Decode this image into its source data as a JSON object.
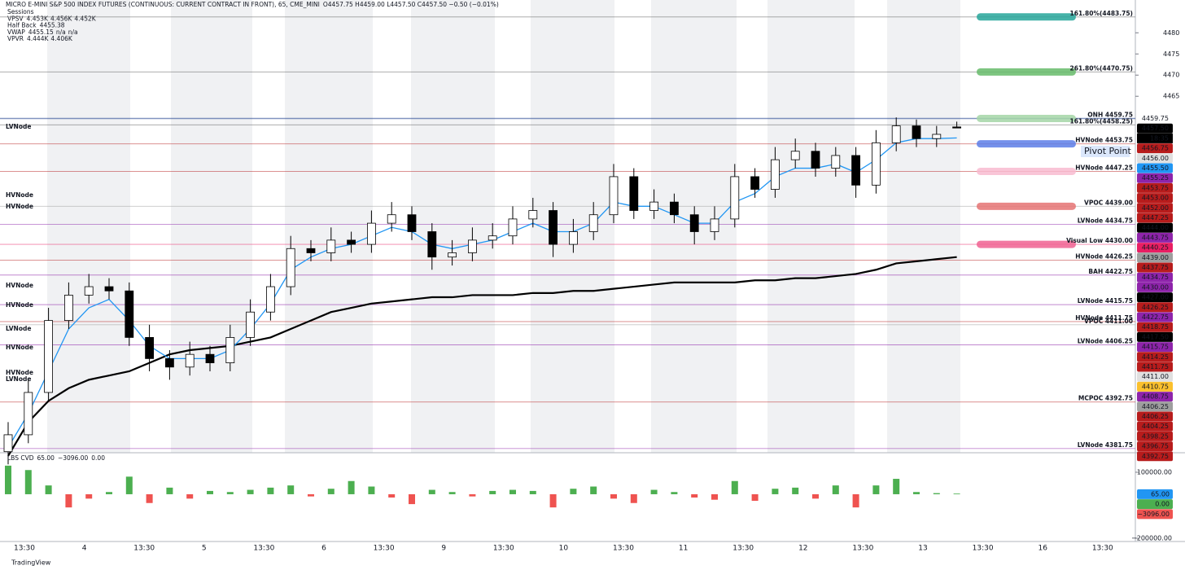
{
  "header": {
    "title": "MICRO E-MINI S&P 500 INDEX FUTURES (CONTINUOUS: CURRENT CONTRACT IN FRONT), 65, CME_MINI",
    "ohlc": "O4457.75 H4459.00 L4457.50 C4457.50 −0.50 (−0.01%)",
    "indicators": [
      {
        "name": "Sessions",
        "values": []
      },
      {
        "name": "VPSV",
        "values": [
          "4.453K",
          "4.456K",
          "4.452K"
        ],
        "color": "#e57373"
      },
      {
        "name": "Half Back",
        "values": [
          "4455.38"
        ],
        "color": "#2962ff"
      },
      {
        "name": "VWAP",
        "values": [
          "4455.15",
          "n/a",
          "n/a"
        ],
        "color": "#2196f3"
      },
      {
        "name": "VPVR",
        "values": [
          "4.444K",
          "4.406K"
        ],
        "color": "#787b86"
      }
    ]
  },
  "chart_data": [
    {
      "type": "candlestick",
      "ylim": [
        4380.75,
        4487.75
      ],
      "yticks": [
        4465,
        4470,
        4475,
        4480
      ],
      "x_labels": [
        "13:30",
        "4",
        "13:30",
        "5",
        "13:30",
        "6",
        "13:30",
        "9",
        "13:30",
        "10",
        "13:30",
        "11",
        "13:30",
        "12",
        "13:30",
        "13",
        "13:30",
        "16",
        "13:30"
      ],
      "up_color": "#ffffff",
      "down_color": "#000000",
      "open": [
        4381,
        4385,
        4395,
        4412,
        4418,
        4420,
        4419,
        4408,
        4403,
        4401,
        4404,
        4402,
        4408,
        4414,
        4420,
        4429,
        4428,
        4431,
        4430,
        4435,
        4437,
        4433,
        4427,
        4428,
        4431,
        4432,
        4436,
        4438,
        4430,
        4433,
        4437,
        4446,
        4438,
        4440,
        4437,
        4433,
        4436,
        4446,
        4443,
        4450,
        4452,
        4448,
        4451,
        4444,
        4454,
        4458,
        4455,
        4457.75
      ],
      "high": [
        4388,
        4398,
        4415,
        4421,
        4423,
        4422,
        4421,
        4411,
        4405,
        4407,
        4406,
        4411,
        4417,
        4423,
        4432,
        4431,
        4434,
        4433,
        4438,
        4440,
        4439,
        4435,
        4431,
        4434,
        4435,
        4439,
        4441,
        4440,
        4436,
        4440,
        4449,
        4448,
        4443,
        4442,
        4439,
        4439,
        4449,
        4448,
        4453,
        4455,
        4454,
        4453,
        4453,
        4457,
        4460,
        4459.5,
        4458,
        4459
      ],
      "low": [
        4378,
        4383,
        4393,
        4410,
        4416,
        4417,
        4406,
        4400,
        4398,
        4399,
        4400,
        4400,
        4406,
        4412,
        4418,
        4426,
        4426,
        4428,
        4428,
        4433,
        4431,
        4424,
        4425,
        4426,
        4429,
        4430,
        4434,
        4427,
        4428,
        4431,
        4435,
        4436,
        4436,
        4435,
        4430,
        4431,
        4434,
        4441,
        4441,
        4448,
        4446,
        4446,
        4441,
        4442,
        4452,
        4453,
        4453,
        4457.5
      ],
      "close": [
        4385,
        4395,
        4412,
        4418,
        4420,
        4419,
        4408,
        4403,
        4401,
        4404,
        4402,
        4408,
        4414,
        4420,
        4429,
        4428,
        4431,
        4430,
        4435,
        4437,
        4433,
        4427,
        4428,
        4431,
        4432,
        4436,
        4438,
        4430,
        4433,
        4437,
        4446,
        4438,
        4440,
        4437,
        4433,
        4436,
        4446,
        4443,
        4450,
        4452,
        4448,
        4451,
        4444,
        4454,
        4458,
        4455,
        4456,
        4457.5
      ],
      "lines": [
        {
          "color": "#000000",
          "values": [
            4380,
            4388,
            4393,
            4396,
            4398,
            4399,
            4400,
            4402,
            4404,
            4405,
            4405.5,
            4406,
            4407,
            4408,
            4410,
            4412,
            4414,
            4415,
            4416,
            4416.5,
            4417,
            4417.5,
            4417.5,
            4418,
            4418,
            4418,
            4418.5,
            4418.5,
            4419,
            4419,
            4419.5,
            4420,
            4420.5,
            4421,
            4421,
            4421,
            4421,
            4421.5,
            4421.5,
            4422,
            4422,
            4422.5,
            4423,
            4424,
            4425.5,
            4426,
            4426.5,
            4427
          ]
        },
        {
          "color": "#2196f3",
          "values": [
            4382,
            4390,
            4400,
            4410,
            4415,
            4417,
            4412,
            4406,
            4403,
            4403,
            4403,
            4405,
            4410,
            4416,
            4424,
            4427,
            4429,
            4430,
            4432,
            4434,
            4433,
            4430,
            4429,
            4430,
            4431,
            4433,
            4435,
            4433,
            4433,
            4435,
            4440,
            4439,
            4439,
            4437,
            4435,
            4435,
            4440,
            4442,
            4446,
            4448,
            4448,
            4449,
            4447,
            4450,
            4454,
            4455,
            4455,
            4455.15
          ]
        }
      ],
      "levels": [
        {
          "label": "161.80%(4483.75)",
          "value": 4483.75,
          "color": "#555555",
          "zone": "#26a69a"
        },
        {
          "label": "261.80%(4470.75)",
          "value": 4470.75,
          "color": "#555555",
          "zone": "#66bb6a"
        },
        {
          "label": "ONH 4459.75",
          "value": 4459.75,
          "color": "#1a3a8c",
          "zone": "#a5d6a7"
        },
        {
          "label": "161.80%(4458.25)",
          "value": 4458.25,
          "color": "#555555"
        },
        {
          "label": "HVNode 4453.75",
          "value": 4453.75,
          "color": "#b71c1c",
          "zone": "#5c7ee8"
        },
        {
          "label": "HVNode 4447.25",
          "value": 4447.25,
          "color": "#b71c1c",
          "zone": "#f8bbd0"
        },
        {
          "label": "VPOC 4439.00",
          "value": 4439,
          "color": "#999999",
          "zone": "#e57373"
        },
        {
          "label": "LVNode 4434.75",
          "value": 4434.75,
          "color": "#8e24aa"
        },
        {
          "label": "Visual Low 4430.00",
          "value": 4430,
          "color": "#e91e63",
          "zone": "#f06292"
        },
        {
          "label": "HVNode 4426.25",
          "value": 4426.25,
          "color": "#b71c1c"
        },
        {
          "label": "BAH 4422.75",
          "value": 4422.75,
          "color": "#8e24aa"
        },
        {
          "label": "LVNode 4415.75",
          "value": 4415.75,
          "color": "#8e24aa"
        },
        {
          "label": "HVNode 4411.75",
          "value": 4411.75,
          "color": "#b71c1c"
        },
        {
          "label": "VPOC 4411.00",
          "value": 4411,
          "color": "#999999"
        },
        {
          "label": "LVNode 4406.25",
          "value": 4406.25,
          "color": "#8e24aa"
        },
        {
          "label": "MCPOC 4392.75",
          "value": 4392.75,
          "color": "#b71c1c"
        },
        {
          "label": "LVNode 4381.75",
          "value": 4381.75,
          "color": "#8e24aa"
        }
      ],
      "price_labels": [
        {
          "value": 4459.75,
          "label": "4459.75",
          "color": "#ffffff",
          "text_color": "#1a3a8c"
        },
        {
          "value": 4457.5,
          "label": "4457.50",
          "color": "#000000",
          "text_color": "#ffffff"
        },
        {
          "value": 4456.75,
          "label": "4456.75",
          "color": "#b71c1c",
          "text_color": "#ffffff"
        },
        {
          "value": 4456,
          "label": "4456.00",
          "color": "#e0e0e0",
          "text_color": "#000000"
        },
        {
          "value": 4455.5,
          "label": "4455.50",
          "color": "#2196f3",
          "text_color": "#ffffff"
        },
        {
          "value": 4455.25,
          "label": "4455.25",
          "color": "#8e24aa",
          "text_color": "#ffffff"
        },
        {
          "value": 4453.75,
          "label": "4453.75",
          "color": "#b71c1c",
          "text_color": "#ffffff"
        },
        {
          "value": 4453,
          "label": "4453.00",
          "color": "#b71c1c",
          "text_color": "#ffffff"
        },
        {
          "value": 4452,
          "label": "4452.00",
          "color": "#b71c1c",
          "text_color": "#ffffff"
        },
        {
          "value": 4447.25,
          "label": "4447.25",
          "color": "#b71c1c",
          "text_color": "#ffffff"
        },
        {
          "value": 4444,
          "label": "4444.00",
          "color": "#000000",
          "text_color": "#ffffff"
        },
        {
          "value": 4443.75,
          "label": "4443.75",
          "color": "#8e24aa",
          "text_color": "#ffffff"
        },
        {
          "value": 4440.25,
          "label": "4440.25",
          "color": "#e91e63",
          "text_color": "#ffffff"
        },
        {
          "value": 4439,
          "label": "4439.00",
          "color": "#9e9e9e",
          "text_color": "#ffffff"
        },
        {
          "value": 4437.75,
          "label": "4437.75",
          "color": "#b71c1c",
          "text_color": "#ffffff"
        },
        {
          "value": 4434.75,
          "label": "4434.75",
          "color": "#8e24aa",
          "text_color": "#ffffff"
        },
        {
          "value": 4430,
          "label": "4430.00",
          "color": "#8e24aa",
          "text_color": "#ffffff"
        },
        {
          "value": 4427,
          "label": "4427.00",
          "color": "#000000",
          "text_color": "#ffffff"
        },
        {
          "value": 4426.25,
          "label": "4426.25",
          "color": "#b71c1c",
          "text_color": "#ffffff"
        },
        {
          "value": 4422.75,
          "label": "4422.75",
          "color": "#8e24aa",
          "text_color": "#ffffff"
        },
        {
          "value": 4418.75,
          "label": "4418.75",
          "color": "#b71c1c",
          "text_color": "#ffffff"
        },
        {
          "value": 4417.5,
          "label": "4417.50",
          "color": "#000000",
          "text_color": "#ffffff"
        },
        {
          "value": 4415.75,
          "label": "4415.75",
          "color": "#8e24aa",
          "text_color": "#ffffff"
        },
        {
          "value": 4414.25,
          "label": "4414.25",
          "color": "#b71c1c",
          "text_color": "#ffffff"
        },
        {
          "value": 4411.75,
          "label": "4411.75",
          "color": "#b71c1c",
          "text_color": "#ffffff"
        },
        {
          "value": 4411,
          "label": "4411.00",
          "color": "#e0e0e0",
          "text_color": "#000000"
        },
        {
          "value": 4410.75,
          "label": "4410.75",
          "color": "#fbc02d",
          "text_color": "#000000"
        },
        {
          "value": 4408.75,
          "label": "4408.75",
          "color": "#8e24aa",
          "text_color": "#ffffff"
        },
        {
          "value": 4406.25,
          "label": "4406.25",
          "color": "#9e9e9e",
          "text_color": "#ffffff"
        },
        {
          "value": 4406.25,
          "label": "4406.25",
          "color": "#b71c1c",
          "text_color": "#ffffff"
        },
        {
          "value": 4404.25,
          "label": "4404.25",
          "color": "#b71c1c",
          "text_color": "#ffffff"
        },
        {
          "value": 4398.25,
          "label": "4398.25",
          "color": "#b71c1c",
          "text_color": "#ffffff"
        },
        {
          "value": 4396.75,
          "label": "4396.75",
          "color": "#b71c1c",
          "text_color": "#ffffff"
        },
        {
          "value": 4392.75,
          "label": "4392.75",
          "color": "#b71c1c",
          "text_color": "#ffffff"
        }
      ],
      "countdown": "18:35",
      "pivot_label": "Pivot Point",
      "left_labels": [
        {
          "text": "LVNode",
          "color": "#8e24aa"
        },
        {
          "text": "HVNode",
          "color": "#b71c1c"
        },
        {
          "text": "HVNode",
          "color": "#b71c1c"
        },
        {
          "text": "HVNode",
          "color": "#b71c1c"
        },
        {
          "text": "HVNode",
          "color": "#b71c1c"
        },
        {
          "text": "LVNode",
          "color": "#8e24aa"
        },
        {
          "text": "HVNode",
          "color": "#b71c1c"
        },
        {
          "text": "HVNode",
          "color": "#b71c1c"
        },
        {
          "text": "LVNode",
          "color": "#8e24aa"
        }
      ]
    },
    {
      "type": "bar",
      "title": "LBS CVD",
      "legend_values": [
        {
          "label": "65.00",
          "color": "#2196f3"
        },
        {
          "label": "−3096.00",
          "color": "#ef5350"
        },
        {
          "label": "0.00",
          "color": "#4caf50"
        }
      ],
      "values": [
        130000,
        110000,
        40000,
        -60000,
        -20000,
        10000,
        80000,
        -40000,
        30000,
        -20000,
        15000,
        10000,
        20000,
        30000,
        40000,
        -10000,
        25000,
        60000,
        35000,
        -15000,
        -45000,
        20000,
        10000,
        -10000,
        15000,
        20000,
        15000,
        -60000,
        25000,
        35000,
        -20000,
        -40000,
        20000,
        10000,
        -15000,
        -25000,
        60000,
        -30000,
        25000,
        30000,
        -20000,
        40000,
        -60000,
        40000,
        70000,
        10000,
        5000,
        3000
      ],
      "positive_color": "#4caf50",
      "negative_color": "#ef5350",
      "ylim": [
        -215000,
        185000
      ],
      "yticks": [
        {
          "value": 100000,
          "label": "100000.00"
        },
        {
          "value": -200000,
          "label": "−200000.00"
        }
      ],
      "badges": [
        {
          "value": 65,
          "label": "65.00",
          "color": "#2196f3"
        },
        {
          "value": 0,
          "label": "0.00",
          "color": "#4caf50"
        },
        {
          "value": -3096,
          "label": "−3096.00",
          "color": "#ef5350"
        }
      ]
    }
  ],
  "footer": "TradingView"
}
